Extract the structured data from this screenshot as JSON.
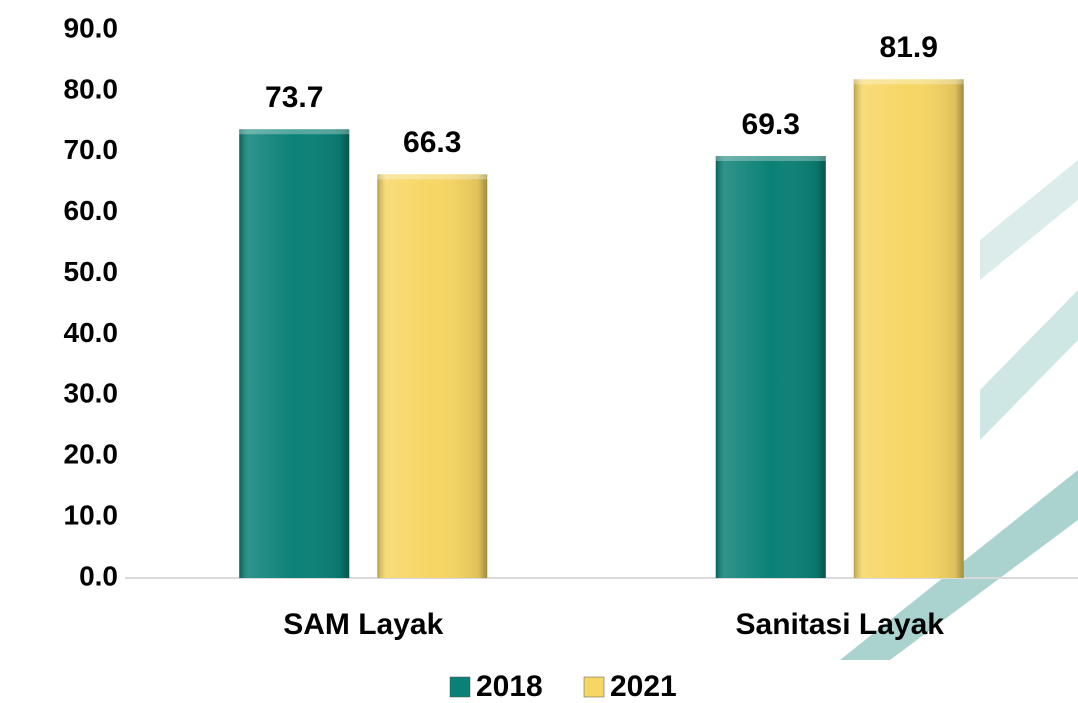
{
  "chart_data": {
    "type": "bar",
    "categories": [
      "SAM Layak",
      "Sanitasi Layak"
    ],
    "series": [
      {
        "name": "2018",
        "color": "#0b8176",
        "values": [
          73.7,
          69.3
        ]
      },
      {
        "name": "2021",
        "color": "#f6d664",
        "values": [
          66.3,
          81.9
        ]
      }
    ],
    "ylim": [
      0,
      90
    ],
    "yticks": [
      {
        "value": 0,
        "label": "0.0"
      },
      {
        "value": 10,
        "label": "10.0"
      },
      {
        "value": 20,
        "label": "20.0"
      },
      {
        "value": 30,
        "label": "30.0"
      },
      {
        "value": 40,
        "label": "40.0"
      },
      {
        "value": 50,
        "label": "50.0"
      },
      {
        "value": 60,
        "label": "60.0"
      },
      {
        "value": 70,
        "label": "70.0"
      },
      {
        "value": 80,
        "label": "80.0"
      },
      {
        "value": 90,
        "label": "90.0"
      }
    ],
    "grid": false,
    "legend": "bottom"
  }
}
